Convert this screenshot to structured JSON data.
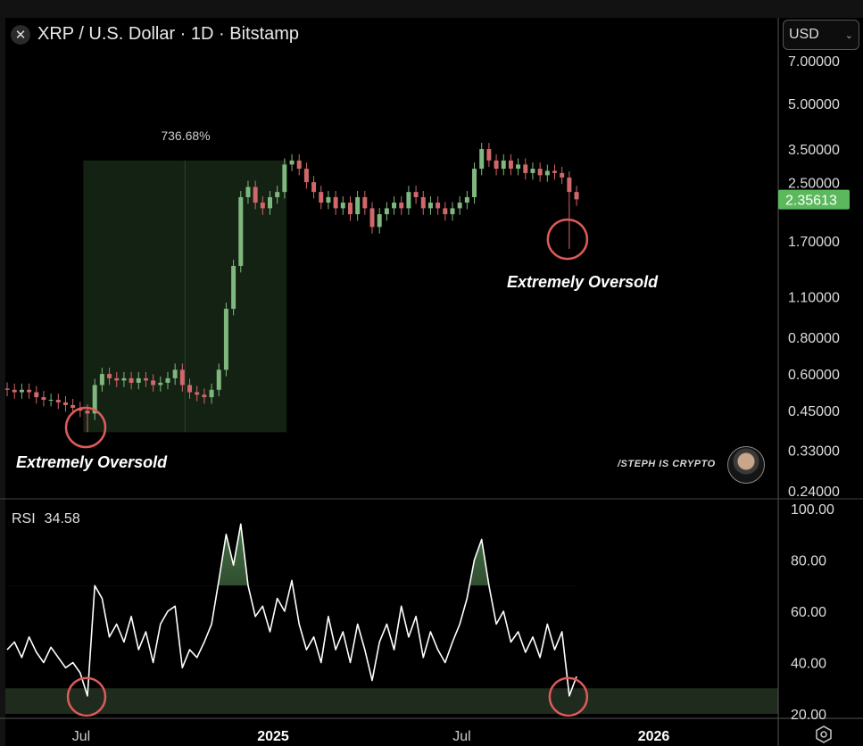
{
  "header": {
    "title": "XRP / U.S. Dollar · 1D · Bitstamp",
    "close_icon": "close-icon"
  },
  "currency_select": {
    "value": "USD"
  },
  "last_price_label": "2.35613",
  "rsi_label": {
    "name": "RSI",
    "value": "34.58"
  },
  "watermark": "/STEPH IS CRYPTO",
  "annotations": {
    "left_label": "Extremely Oversold",
    "right_label": "Extremely Oversold",
    "measure_label": "736.68%"
  },
  "colors": {
    "up": "#7fb77e",
    "down": "#d0676a",
    "circle": "#e05a5a",
    "last_price_bg": "#5cb85c",
    "oversold_band": "#1f2b1d",
    "measure_box": "#142214"
  },
  "settings_icon": "hexagon-settings-icon",
  "chart_data": [
    {
      "type": "candlestick",
      "title": "XRP / U.S. Dollar · 1D · Bitstamp",
      "y_scale": "log",
      "ylim": [
        0.24,
        7.5
      ],
      "y_ticks": [
        "7.00000",
        "5.00000",
        "3.50000",
        "2.50000",
        "1.70000",
        "1.10000",
        "0.80000",
        "0.60000",
        "0.45000",
        "0.33000",
        "0.24000"
      ],
      "x_ticks": [
        {
          "label": "Jul",
          "date": "2024-07-01"
        },
        {
          "label": "2025",
          "date": "2025-01-01"
        },
        {
          "label": "Jul",
          "date": "2025-07-01"
        },
        {
          "label": "2026",
          "date": "2026-01-01"
        }
      ],
      "grid": false,
      "dates": [
        "2024-04-21",
        "2024-04-28",
        "2024-05-05",
        "2024-05-12",
        "2024-05-19",
        "2024-05-26",
        "2024-06-02",
        "2024-06-09",
        "2024-06-16",
        "2024-06-23",
        "2024-06-30",
        "2024-07-07",
        "2024-07-14",
        "2024-07-21",
        "2024-07-28",
        "2024-08-04",
        "2024-08-11",
        "2024-08-18",
        "2024-08-25",
        "2024-09-01",
        "2024-09-08",
        "2024-09-15",
        "2024-09-22",
        "2024-09-29",
        "2024-10-06",
        "2024-10-13",
        "2024-10-20",
        "2024-10-27",
        "2024-11-03",
        "2024-11-10",
        "2024-11-17",
        "2024-11-24",
        "2024-12-01",
        "2024-12-08",
        "2024-12-15",
        "2024-12-22",
        "2024-12-29",
        "2025-01-05",
        "2025-01-12",
        "2025-01-19",
        "2025-01-26",
        "2025-02-02",
        "2025-02-09",
        "2025-02-16",
        "2025-02-23",
        "2025-03-02",
        "2025-03-09",
        "2025-03-16",
        "2025-03-23",
        "2025-03-30",
        "2025-04-06",
        "2025-04-13",
        "2025-04-20",
        "2025-04-27",
        "2025-05-04",
        "2025-05-11",
        "2025-05-18",
        "2025-05-25",
        "2025-06-01",
        "2025-06-08",
        "2025-06-15",
        "2025-06-22",
        "2025-06-29",
        "2025-07-06",
        "2025-07-13",
        "2025-07-20",
        "2025-07-27",
        "2025-08-03",
        "2025-08-10",
        "2025-08-17",
        "2025-08-24",
        "2025-08-31",
        "2025-09-07",
        "2025-09-14",
        "2025-09-21",
        "2025-09-28",
        "2025-10-05",
        "2025-10-12",
        "2025-10-19"
      ],
      "close": [
        0.53,
        0.52,
        0.53,
        0.52,
        0.5,
        0.49,
        0.49,
        0.48,
        0.47,
        0.46,
        0.45,
        0.44,
        0.55,
        0.6,
        0.58,
        0.57,
        0.58,
        0.56,
        0.58,
        0.57,
        0.55,
        0.56,
        0.58,
        0.62,
        0.55,
        0.52,
        0.51,
        0.5,
        0.53,
        0.62,
        1.0,
        1.4,
        2.4,
        2.6,
        2.3,
        2.2,
        2.4,
        2.5,
        3.1,
        3.2,
        3.0,
        2.7,
        2.5,
        2.3,
        2.4,
        2.2,
        2.3,
        2.1,
        2.4,
        2.2,
        1.9,
        2.1,
        2.2,
        2.3,
        2.2,
        2.5,
        2.4,
        2.2,
        2.3,
        2.2,
        2.1,
        2.2,
        2.3,
        2.4,
        3.0,
        3.5,
        3.2,
        3.0,
        3.2,
        3.0,
        3.1,
        2.9,
        3.0,
        2.85,
        2.95,
        2.9,
        2.8,
        2.5,
        2.36
      ],
      "notable_lows": [
        {
          "date": "2024-07-07",
          "low": 0.38
        },
        {
          "date": "2025-10-12",
          "low": 1.6
        }
      ],
      "last_price": 2.35613,
      "measure": {
        "from_date": "2024-07-03",
        "to_date": "2025-01-14",
        "low": 0.38,
        "high": 3.2,
        "label": "736.68%"
      },
      "callouts": [
        {
          "date": "2024-07-07",
          "price": 0.4,
          "label": "Extremely Oversold"
        },
        {
          "date": "2025-10-12",
          "price": 1.75,
          "label": "Extremely Oversold"
        }
      ]
    },
    {
      "type": "line",
      "title": "RSI",
      "ylim": [
        19,
        101
      ],
      "y_ticks": [
        "100.00",
        "80.00",
        "60.00",
        "40.00",
        "20.00"
      ],
      "oversold_band": [
        20,
        30
      ],
      "overbought_fill_above": 70,
      "last_value": 34.58,
      "values": [
        45,
        48,
        42,
        50,
        44,
        40,
        46,
        42,
        38,
        40,
        36,
        27,
        70,
        65,
        50,
        55,
        48,
        58,
        45,
        52,
        40,
        55,
        60,
        62,
        38,
        45,
        42,
        48,
        55,
        72,
        90,
        78,
        94,
        70,
        58,
        62,
        52,
        65,
        60,
        72,
        55,
        45,
        50,
        40,
        58,
        45,
        52,
        40,
        55,
        45,
        33,
        48,
        55,
        45,
        62,
        50,
        58,
        42,
        52,
        45,
        40,
        48,
        55,
        65,
        80,
        88,
        70,
        55,
        60,
        48,
        52,
        44,
        50,
        42,
        55,
        45,
        52,
        27,
        34.58
      ],
      "callouts": [
        {
          "date": "2024-07-07",
          "value": 27
        },
        {
          "date": "2025-10-12",
          "value": 27
        }
      ]
    }
  ]
}
